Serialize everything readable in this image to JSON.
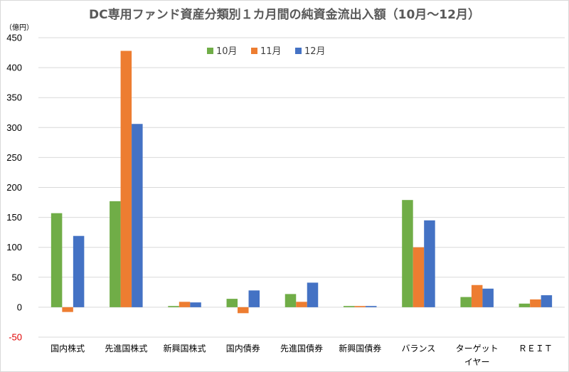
{
  "chart_data": {
    "type": "bar",
    "title": "DC専用ファンド資産分類別１カ月間の純資金流出入額（10月〜12月）",
    "unit_label": "（億円）",
    "categories": [
      "国内株式",
      "先進国株式",
      "新興国株式",
      "国内債券",
      "先進国債券",
      "新興国債券",
      "バランス",
      "ターゲット\nイヤー",
      "ＲＥＩＴ"
    ],
    "series": [
      {
        "name": "10月",
        "color": "#70ad47",
        "values": [
          157,
          177,
          2,
          14,
          22,
          2,
          179,
          17,
          6
        ]
      },
      {
        "name": "11月",
        "color": "#ed7d31",
        "values": [
          -8,
          428,
          9,
          -10,
          9,
          2,
          100,
          37,
          13
        ]
      },
      {
        "name": "12月",
        "color": "#4472c4",
        "values": [
          119,
          306,
          8,
          28,
          41,
          2,
          145,
          31,
          20
        ]
      }
    ],
    "ylim": [
      -50,
      450
    ],
    "yticks": [
      -50,
      0,
      50,
      100,
      150,
      200,
      250,
      300,
      350,
      400,
      450
    ],
    "grid": true,
    "legend_position": "top-center",
    "xlabel": "",
    "ylabel": ""
  }
}
